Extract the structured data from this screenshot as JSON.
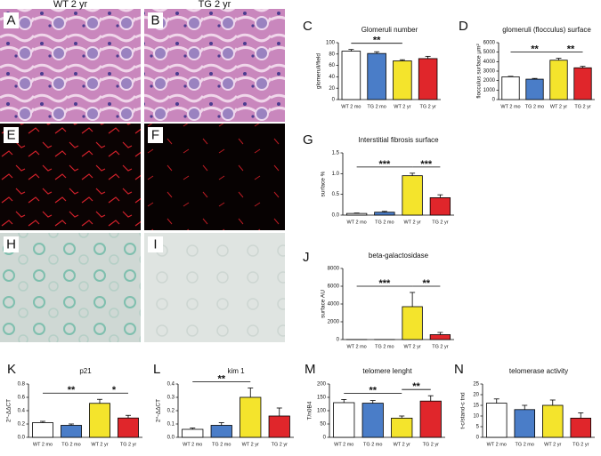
{
  "column_headers": [
    "WT 2 yr",
    "TG 2 yr"
  ],
  "image_panels": [
    "A",
    "B",
    "E",
    "F",
    "H",
    "I"
  ],
  "chart_data": [
    {
      "type": "bar",
      "panel": "C",
      "title": "Glomeruli number",
      "y_label": "glomeruli/field",
      "categories": [
        "WT 2 mo",
        "TG 2 mo",
        "WT 2 yr",
        "TG 2 yr"
      ],
      "values": [
        85,
        81,
        68,
        72
      ],
      "errors": [
        3,
        3,
        2,
        4
      ],
      "colors": [
        "#ffffff",
        "#4a7dc8",
        "#f4e42c",
        "#e0262b"
      ],
      "ylim": [
        0,
        100
      ],
      "yticks": [
        0,
        20,
        40,
        60,
        80,
        100
      ],
      "significance": [
        {
          "text": "**",
          "between": [
            "WT 2 mo",
            "WT 2 yr"
          ]
        }
      ]
    },
    {
      "type": "bar",
      "panel": "D",
      "title": "glomeruli (flocculus) surface",
      "y_label": "flocculus surface µm²",
      "categories": [
        "WT 2 mo",
        "TG 2 mo",
        "WT 2 yr",
        "TG 2 yr"
      ],
      "values": [
        2400,
        2150,
        4150,
        3350
      ],
      "errors": [
        50,
        80,
        200,
        150
      ],
      "colors": [
        "#ffffff",
        "#4a7dc8",
        "#f4e42c",
        "#e0262b"
      ],
      "ylim": [
        0,
        6000
      ],
      "yticks": [
        0,
        1000,
        2000,
        3000,
        4000,
        5000,
        6000
      ],
      "significance": [
        {
          "text": "**",
          "between": [
            "WT 2 mo",
            "WT 2 yr"
          ]
        },
        {
          "text": "**",
          "between": [
            "WT 2 yr",
            "TG 2 yr"
          ]
        }
      ]
    },
    {
      "type": "bar",
      "panel": "G",
      "title": "Interstitial fibrosis surface",
      "y_label": "surface %",
      "categories": [
        "WT 2 mo",
        "TG 2 mo",
        "WT 2 yr",
        "TG 2 yr"
      ],
      "values": [
        0.04,
        0.07,
        0.95,
        0.42
      ],
      "errors": [
        0.01,
        0.02,
        0.06,
        0.07
      ],
      "colors": [
        "#ffffff",
        "#4a7dc8",
        "#f4e42c",
        "#e0262b"
      ],
      "ylim": [
        0,
        1.5
      ],
      "yticks": [
        {
          "value": 0,
          "label": "0.0"
        },
        {
          "value": 0.5,
          "label": "0.5"
        },
        {
          "value": 1,
          "label": "1.0"
        },
        {
          "value": 1.5,
          "label": "1.5"
        }
      ],
      "significance": [
        {
          "text": "***",
          "between": [
            "WT 2 mo",
            "WT 2 yr"
          ]
        },
        {
          "text": "***",
          "between": [
            "WT 2 yr",
            "TG 2 yr"
          ]
        }
      ]
    },
    {
      "type": "bar",
      "panel": "J",
      "title": "beta-galactosidase",
      "y_label": "surface AU",
      "categories": [
        "WT 2 mo",
        "TG 2 mo",
        "WT 2 yr",
        "TG 2 yr"
      ],
      "values": [
        10,
        10,
        3700,
        550
      ],
      "errors": [
        0,
        0,
        1600,
        250
      ],
      "colors": [
        "#ffffff",
        "#4a7dc8",
        "#f4e42c",
        "#e0262b"
      ],
      "ylim": [
        0,
        8000
      ],
      "yticks": [
        0,
        2000,
        4000,
        6000,
        8000
      ],
      "significance": [
        {
          "text": "***",
          "between": [
            "WT 2 mo",
            "WT 2 yr"
          ]
        },
        {
          "text": "**",
          "between": [
            "WT 2 yr",
            "TG 2 yr"
          ]
        }
      ]
    },
    {
      "type": "bar",
      "panel": "K",
      "title": "p21",
      "y_label": "2^-ΔΔCT",
      "categories": [
        "WT 2 mo",
        "TG 2 mo",
        "WT 2 yr",
        "TG 2 yr"
      ],
      "values": [
        0.22,
        0.18,
        0.51,
        0.29
      ],
      "errors": [
        0.02,
        0.02,
        0.06,
        0.04
      ],
      "colors": [
        "#ffffff",
        "#4a7dc8",
        "#f4e42c",
        "#e0262b"
      ],
      "ylim": [
        0,
        0.8
      ],
      "yticks": [
        {
          "value": 0,
          "label": "0.0"
        },
        0.2,
        0.4,
        0.6,
        0.8
      ],
      "significance": [
        {
          "text": "**",
          "between": [
            "WT 2 mo",
            "WT 2 yr"
          ]
        },
        {
          "text": "*",
          "between": [
            "WT 2 yr",
            "TG 2 yr"
          ]
        }
      ]
    },
    {
      "type": "bar",
      "panel": "L",
      "title": "kim 1",
      "y_label": "2^-ΔΔCT",
      "categories": [
        "WT 2 mo",
        "TG 2 mo",
        "WT 2 yr",
        "TG 2 yr"
      ],
      "values": [
        0.06,
        0.09,
        0.3,
        0.16
      ],
      "errors": [
        0.01,
        0.02,
        0.07,
        0.06
      ],
      "colors": [
        "#ffffff",
        "#4a7dc8",
        "#f4e42c",
        "#e0262b"
      ],
      "ylim": [
        0,
        0.4
      ],
      "yticks": [
        {
          "value": 0,
          "label": "0.0"
        },
        0.1,
        0.2,
        0.3,
        0.4
      ],
      "significance": [
        {
          "text": "**",
          "between": [
            "WT 2 mo",
            "WT 2 yr"
          ]
        }
      ]
    },
    {
      "type": "bar",
      "panel": "M",
      "title": "telomere lenght",
      "y_label": "T/n0B4",
      "categories": [
        "WT 2 mo",
        "TG 2 mo",
        "WT 2 yr",
        "TG 2 yr"
      ],
      "values": [
        130,
        128,
        72,
        136
      ],
      "errors": [
        12,
        10,
        8,
        20
      ],
      "colors": [
        "#ffffff",
        "#4a7dc8",
        "#f4e42c",
        "#e0262b"
      ],
      "ylim": [
        0,
        200
      ],
      "yticks": [
        0,
        50,
        100,
        150,
        200
      ],
      "significance": [
        {
          "text": "**",
          "between": [
            "WT 2 mo",
            "WT 2 yr"
          ]
        },
        {
          "text": "**",
          "between": [
            "WT 2 yr",
            "TG 2 yr"
          ]
        }
      ]
    },
    {
      "type": "bar",
      "panel": "N",
      "title": "telomerase activity",
      "y_label": "t-c/stand-c tnd",
      "categories": [
        "WT 2 mo",
        "TG 2 mo",
        "WT 2 yr",
        "TG 2 yr"
      ],
      "values": [
        16,
        13,
        15,
        9
      ],
      "errors": [
        2,
        2,
        2.5,
        2.5
      ],
      "colors": [
        "#ffffff",
        "#4a7dc8",
        "#f4e42c",
        "#e0262b"
      ],
      "ylim": [
        0,
        25
      ],
      "yticks": [
        0,
        5,
        10,
        15,
        20,
        25
      ],
      "significance": []
    }
  ]
}
